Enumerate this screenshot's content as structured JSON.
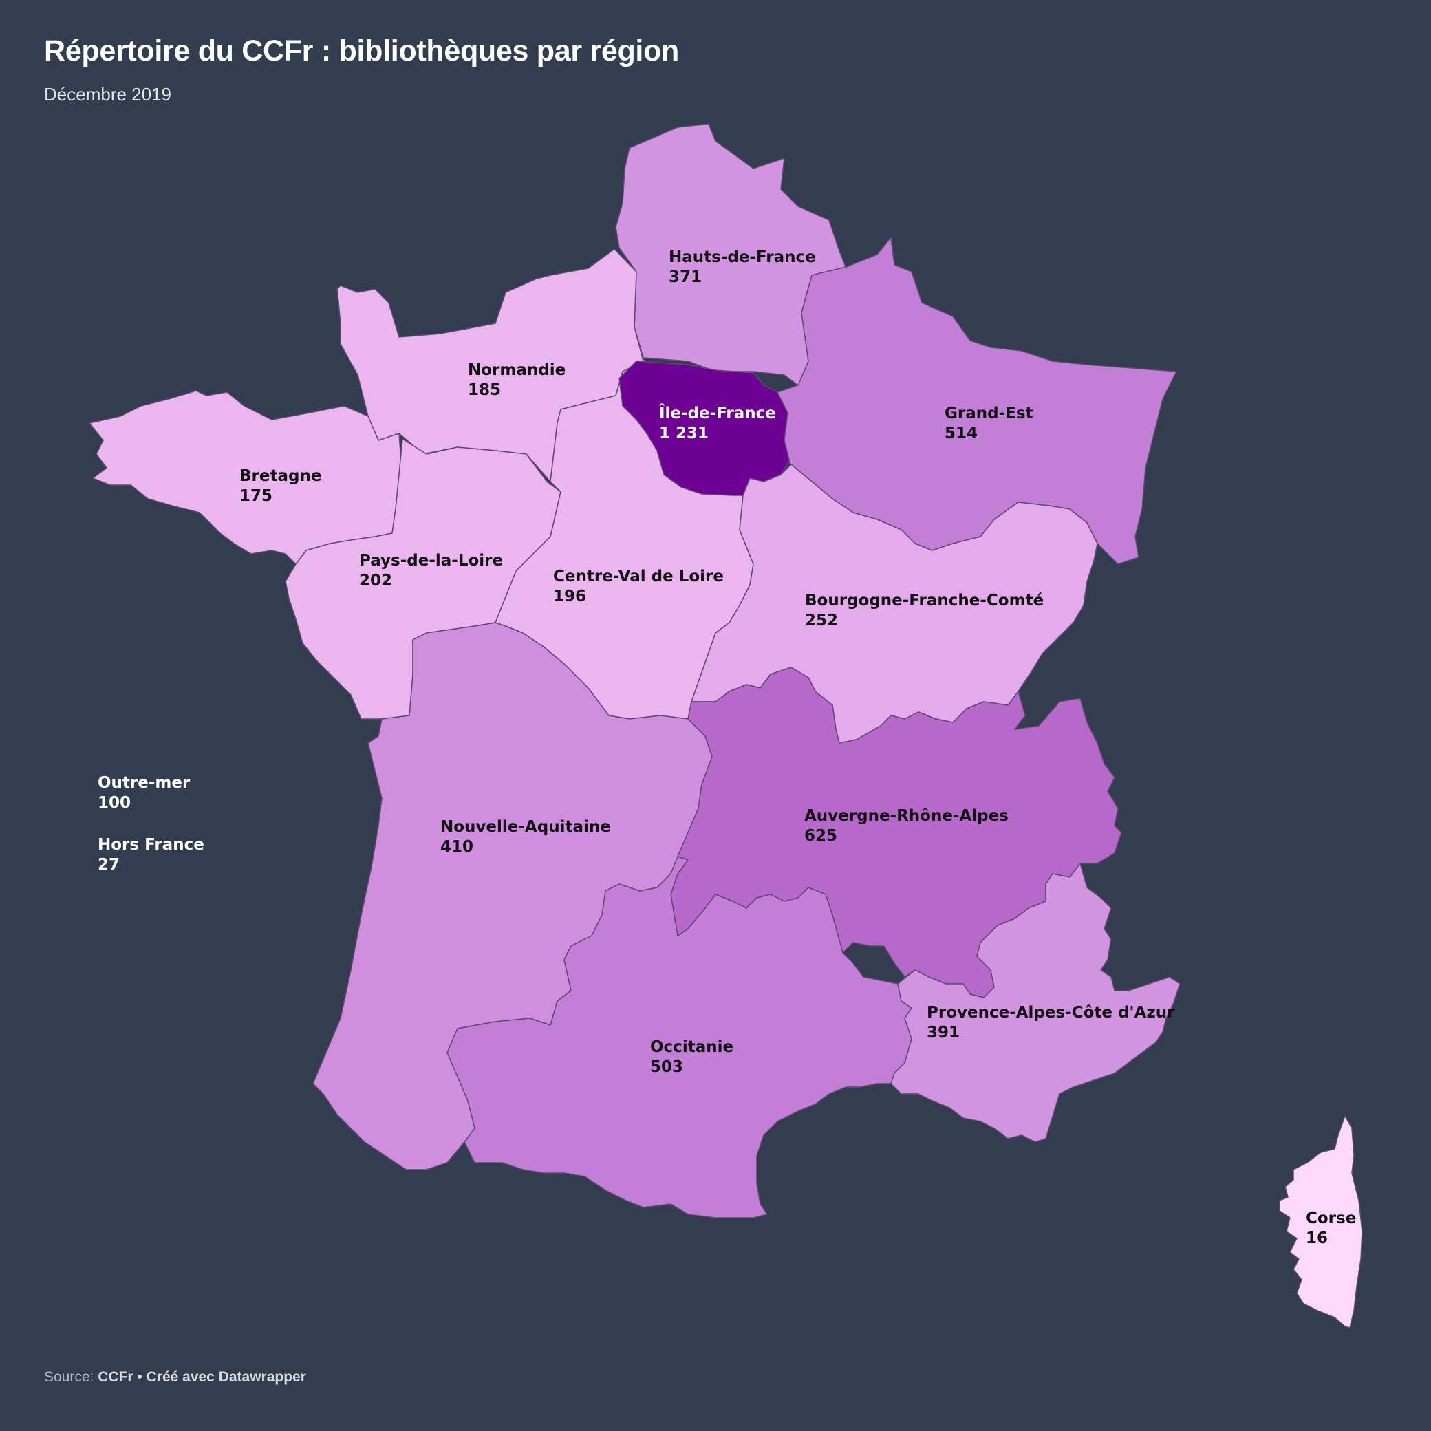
{
  "title": "Répertoire du CCFr : bibliothèques par région",
  "subtitle": "Décembre 2019",
  "footer": {
    "source_label": "Source:",
    "source_name": "CCFr",
    "separator": "•",
    "credit": "Créé avec Datawrapper"
  },
  "map_data": {
    "type": "choropleth",
    "colors": {
      "lightest": "#fcd8fc",
      "light": "#ebb6f0",
      "medium": "#d293e0",
      "dark": "#c37ed7",
      "darker": "#b769cb",
      "darkest": "#6e0096"
    },
    "regions": [
      {
        "key": "hdf",
        "name": "Hauts-de-France",
        "value": "371",
        "color": "#d293e0"
      },
      {
        "key": "normandie",
        "name": "Normandie",
        "value": "185",
        "color": "#ebb6f0"
      },
      {
        "key": "idf",
        "name": "Île-de-France",
        "value": "1 231",
        "color": "#6e0096"
      },
      {
        "key": "grandest",
        "name": "Grand-Est",
        "value": "514",
        "color": "#c37ed7"
      },
      {
        "key": "bretagne",
        "name": "Bretagne",
        "value": "175",
        "color": "#ebb6f0"
      },
      {
        "key": "pdl",
        "name": "Pays-de-la-Loire",
        "value": "202",
        "color": "#ebb6f0"
      },
      {
        "key": "cvl",
        "name": "Centre-Val de Loire",
        "value": "196",
        "color": "#ebb6f0"
      },
      {
        "key": "bfc",
        "name": "Bourgogne-Franche-Comté",
        "value": "252",
        "color": "#e5aaeb"
      },
      {
        "key": "na",
        "name": "Nouvelle-Aquitaine",
        "value": "410",
        "color": "#d08ede"
      },
      {
        "key": "ara",
        "name": "Auvergne-Rhône-Alpes",
        "value": "625",
        "color": "#b769cb"
      },
      {
        "key": "occitanie",
        "name": "Occitanie",
        "value": "503",
        "color": "#c37ed7"
      },
      {
        "key": "paca",
        "name": "Provence-Alpes-Côte d'Azur",
        "value": "391",
        "color": "#d293e0"
      },
      {
        "key": "corse",
        "name": "Corse",
        "value": "16",
        "color": "#fcd8fc"
      }
    ],
    "extra": [
      {
        "key": "outremer",
        "name": "Outre-mer",
        "value": "100"
      },
      {
        "key": "horsfrance",
        "name": "Hors France",
        "value": "27"
      }
    ]
  }
}
